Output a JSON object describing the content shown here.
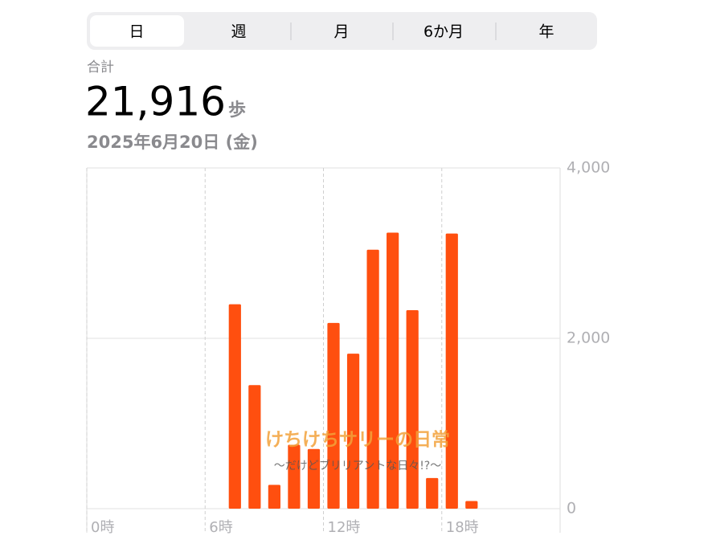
{
  "tabs": [
    "日",
    "週",
    "月",
    "6か月",
    "年"
  ],
  "summary": {
    "label": "合計",
    "total": "21,916",
    "unit": "歩",
    "date": "2025年6月20日 (金)"
  },
  "watermark": {
    "title": "けちけちサリーの日常",
    "subtitle": "〜だけどブリリアントな日々!?〜"
  },
  "chart_data": {
    "type": "bar",
    "color": "#ff4f0f",
    "grid": true,
    "x": [
      7,
      8,
      9,
      10,
      11,
      12,
      13,
      14,
      15,
      16,
      17,
      18,
      19
    ],
    "values": [
      2400,
      1450,
      280,
      750,
      700,
      2180,
      1820,
      3040,
      3240,
      2330,
      360,
      3230,
      90
    ],
    "xlim": [
      0,
      24
    ],
    "xticks": [
      {
        "value": 0,
        "label": "0時"
      },
      {
        "value": 6,
        "label": "6時"
      },
      {
        "value": 12,
        "label": "12時"
      },
      {
        "value": 18,
        "label": "18時"
      }
    ],
    "ylim": [
      0,
      4000
    ],
    "yticks": [
      0,
      {
        "value": 2000,
        "label": "2,000"
      },
      {
        "value": 4000,
        "label": "4,000"
      }
    ]
  }
}
